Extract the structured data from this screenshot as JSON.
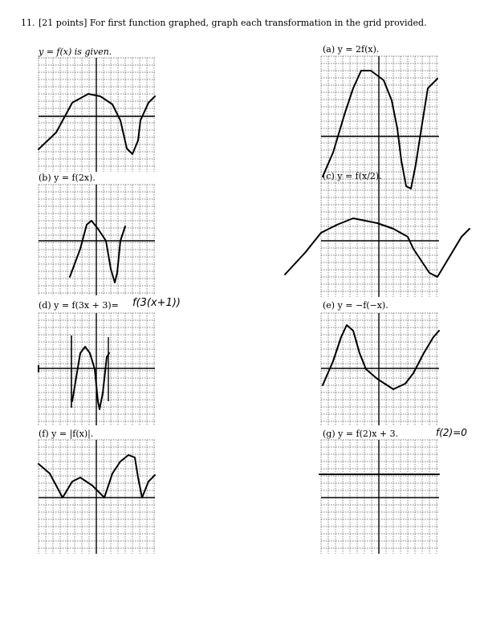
{
  "problem": {
    "number": "11.",
    "instruction": "[21 points] For first function graphed, graph each transformation in the grid provided."
  },
  "panels": [
    {
      "id": "given",
      "label": "y = f(x) is given."
    },
    {
      "id": "a",
      "label": "(a) y = 2f(x)."
    },
    {
      "id": "b",
      "label": "(b) y = f(2x)."
    },
    {
      "id": "c",
      "label": "(c) y = f(x/2)."
    },
    {
      "id": "d",
      "label": "(d) y = f(3x + 3)=",
      "handwritten": "f(3(x+1))"
    },
    {
      "id": "e",
      "label": "(e) y = −f(−x)."
    },
    {
      "id": "f",
      "label": "(f) y = |f(x)|."
    },
    {
      "id": "g",
      "label": "(g) y = f(2)x + 3.",
      "handwritten": "f(2)=0"
    }
  ]
}
